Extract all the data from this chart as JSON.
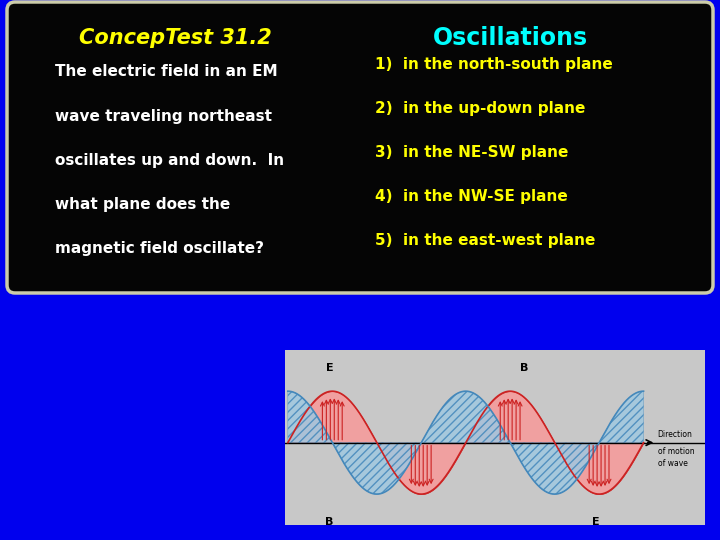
{
  "bg_color": "#0000EE",
  "box_bg": "#050505",
  "box_border": "#CCCCAA",
  "title_left": "ConcepTest 31.2",
  "title_left_color": "#FFFF00",
  "title_right": "Oscillations",
  "title_right_color": "#00FFFF",
  "question_text": [
    "The electric field in an EM",
    "wave traveling northeast",
    "oscillates up and down.  In",
    "what plane does the",
    "magnetic field oscillate?"
  ],
  "question_color": "#FFFFFF",
  "answers": [
    "1)  in the north-south plane",
    "2)  in the up-down plane",
    "3)  in the NE-SW plane",
    "4)  in the NW-SE plane",
    "5)  in the east-west plane"
  ],
  "answer_color": "#FFFF00",
  "E_color_fill": "#F0A0A0",
  "E_color_edge": "#CC2222",
  "E_arrow_color": "#CC2222",
  "B_color_fill": "#A0C8E0",
  "B_color_edge": "#4488BB",
  "wave_bg": "#C8C8C8"
}
